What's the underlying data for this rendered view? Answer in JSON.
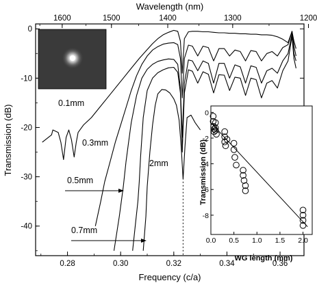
{
  "chart_data": [
    {
      "type": "line",
      "xlabel": "Frequency (c/a)",
      "ylabel": "Transmission (dB)",
      "top_xlabel": "Wavelength (nm)",
      "xlim": [
        0.268,
        0.369
      ],
      "ylim": [
        -46,
        1
      ],
      "x_ticks": [
        0.28,
        0.3,
        0.32,
        0.34,
        0.36
      ],
      "x_tick_labels": [
        "0.28",
        "0.30",
        "0.32",
        "0.34",
        "0.36"
      ],
      "y_ticks": [
        0,
        -10,
        -20,
        -30,
        -40
      ],
      "y_tick_labels": [
        "0",
        "-10",
        "-20",
        "-30",
        "-40"
      ],
      "top_ticks": [
        1600,
        1500,
        1400,
        1300,
        1200
      ],
      "top_tick_labels": [
        "1600",
        "1500",
        "1400",
        "1300",
        "1200"
      ],
      "dotted_marker_x": 0.3235,
      "series": [
        {
          "name": "0.1mm",
          "x": [
            0.2705,
            0.274,
            0.2745,
            0.2765,
            0.2775,
            0.2785,
            0.2795,
            0.2805,
            0.2815,
            0.2825,
            0.2833,
            0.284,
            0.286,
            0.289,
            0.292,
            0.295,
            0.298,
            0.301,
            0.304,
            0.307,
            0.31,
            0.312,
            0.314,
            0.316,
            0.318,
            0.32,
            0.3215,
            0.3225,
            0.3232,
            0.324,
            0.3255,
            0.327,
            0.329,
            0.331,
            0.333,
            0.335,
            0.337,
            0.339,
            0.341,
            0.343,
            0.345,
            0.347,
            0.349,
            0.351,
            0.353,
            0.355,
            0.357,
            0.359,
            0.361,
            0.363,
            0.3645,
            0.3652,
            0.366
          ],
          "y": [
            -23,
            -21.5,
            -20.5,
            -21,
            -23,
            -26.5,
            -22,
            -20.5,
            -22.5,
            -26,
            -23,
            -21,
            -19.5,
            -18,
            -16,
            -14,
            -12,
            -10,
            -8,
            -6,
            -4.2,
            -3,
            -2,
            -1.2,
            -0.7,
            -0.3,
            -0.5,
            -2.5,
            -9,
            -2,
            -0.6,
            -0.5,
            -0.5,
            -0.6,
            -0.6,
            -0.7,
            -0.8,
            -0.8,
            -0.9,
            -0.9,
            -1,
            -1,
            -1.1,
            -1.1,
            -1.2,
            -1.2,
            -1.3,
            -1.6,
            -2.1,
            -2.8,
            -0.5,
            -2.5,
            -4
          ]
        },
        {
          "name": "0.3mm",
          "x": [
            0.2905,
            0.2925,
            0.294,
            0.296,
            0.298,
            0.3,
            0.302,
            0.304,
            0.306,
            0.308,
            0.31,
            0.312,
            0.314,
            0.316,
            0.318,
            0.32,
            0.3215,
            0.3225,
            0.3232,
            0.324,
            0.3255,
            0.327,
            0.329,
            0.331,
            0.333,
            0.335,
            0.337,
            0.339,
            0.341,
            0.343,
            0.345,
            0.347,
            0.349,
            0.351,
            0.353,
            0.355,
            0.357,
            0.359,
            0.361,
            0.363,
            0.3645,
            0.3652,
            0.366
          ],
          "y": [
            -40,
            -35,
            -31,
            -27,
            -23,
            -19.5,
            -16,
            -12.5,
            -9.5,
            -7.2,
            -5.5,
            -4.3,
            -3.6,
            -3.1,
            -2.9,
            -2.8,
            -3.2,
            -6,
            -14,
            -6,
            -3.3,
            -3.5,
            -5.5,
            -3.5,
            -3.8,
            -6.5,
            -4,
            -4,
            -5.5,
            -4.3,
            -4.6,
            -6.5,
            -4.4,
            -4.6,
            -6.5,
            -5,
            -4.6,
            -5.5,
            -3.8,
            -3.2,
            -0.5,
            -3.5,
            -5.5
          ]
        },
        {
          "name": "0.5mm",
          "x": [
            0.2975,
            0.2995,
            0.301,
            0.302,
            0.303,
            0.304,
            0.306,
            0.308,
            0.31,
            0.312,
            0.314,
            0.316,
            0.318,
            0.32,
            0.3215,
            0.3225,
            0.3232,
            0.324,
            0.3255,
            0.327,
            0.329,
            0.331,
            0.333,
            0.335,
            0.337,
            0.339,
            0.341,
            0.343,
            0.345,
            0.347,
            0.349,
            0.351,
            0.353,
            0.355,
            0.357,
            0.359,
            0.361,
            0.363,
            0.3645,
            0.3652,
            0.366
          ],
          "y": [
            -45,
            -38,
            -32,
            -27,
            -23,
            -19,
            -13.5,
            -10,
            -8.2,
            -7.2,
            -6.6,
            -6.3,
            -6.1,
            -6.2,
            -7.2,
            -12,
            -22,
            -11,
            -6.3,
            -6.5,
            -8.5,
            -6.5,
            -7,
            -11,
            -7,
            -7,
            -10,
            -7.3,
            -7.7,
            -11,
            -7.5,
            -7.8,
            -11,
            -8.5,
            -8,
            -9,
            -6.5,
            -5,
            -1,
            -5,
            -6.5
          ]
        },
        {
          "name": "0.7mm",
          "x": [
            0.3045,
            0.3055,
            0.3065,
            0.307,
            0.3075,
            0.3085,
            0.31,
            0.312,
            0.314,
            0.316,
            0.318,
            0.32,
            0.3215,
            0.3225,
            0.3232,
            0.324,
            0.3255,
            0.327,
            0.329,
            0.331,
            0.333,
            0.335,
            0.337,
            0.339,
            0.341,
            0.343,
            0.345,
            0.347,
            0.349,
            0.351,
            0.353,
            0.355,
            0.357,
            0.359,
            0.361,
            0.363,
            0.3645,
            0.3652,
            0.366
          ],
          "y": [
            -45,
            -40,
            -35,
            -31,
            -26,
            -18,
            -12.5,
            -10,
            -8.9,
            -8.3,
            -7.9,
            -7.8,
            -8.8,
            -13,
            -25,
            -13,
            -8.3,
            -8.6,
            -11,
            -8.7,
            -9.2,
            -13,
            -9.3,
            -9.4,
            -12.5,
            -9.8,
            -10,
            -13.5,
            -10,
            -10.3,
            -14,
            -11,
            -10.5,
            -12,
            -8.5,
            -6.5,
            -1.5,
            -6,
            -8
          ]
        },
        {
          "name": "2mm",
          "x": [
            0.3085,
            0.3095,
            0.31,
            0.311,
            0.312,
            0.313,
            0.314,
            0.3155,
            0.317,
            0.3185,
            0.32,
            0.321,
            0.322,
            0.3228,
            0.3235,
            0.3242,
            0.325,
            0.3265,
            0.328,
            0.33
          ],
          "y": [
            -45,
            -38,
            -32,
            -25,
            -19.5,
            -15.5,
            -13.2,
            -12.3,
            -12.4,
            -13,
            -14.2,
            -15.5,
            -18.5,
            -24,
            -30.5,
            -24,
            -18,
            -17.5,
            -19,
            -20.5
          ]
        }
      ]
    },
    {
      "type": "scatter",
      "xlabel": "WG length (mm)",
      "ylabel": "Transmission (dB)",
      "xlim": [
        0,
        2.2
      ],
      "ylim": [
        -9.5,
        0.5
      ],
      "x_ticks": [
        0,
        0.5,
        1.0,
        1.5,
        2.0
      ],
      "x_tick_labels": [
        "0.0",
        "0.5",
        "1.0",
        "1.5",
        "2.0"
      ],
      "y_ticks": [
        0,
        -2,
        -4,
        -6,
        -8
      ],
      "y_tick_labels": [
        "0",
        "-2",
        "-4",
        "-6",
        "-8"
      ],
      "points": {
        "x": [
          0.05,
          0.05,
          0.06,
          0.07,
          0.07,
          0.1,
          0.1,
          0.1,
          0.12,
          0.3,
          0.3,
          0.3,
          0.32,
          0.35,
          0.5,
          0.5,
          0.52,
          0.55,
          0.7,
          0.7,
          0.72,
          0.75,
          0.75,
          2.0,
          2.0,
          2.0,
          2.0
        ],
        "y": [
          -0.3,
          -0.7,
          -1.1,
          -1.3,
          -1.5,
          -0.8,
          -1.2,
          -1.4,
          -1.7,
          -1.5,
          -1.9,
          -2.3,
          -2.6,
          -2.1,
          -2.4,
          -2.9,
          -3.5,
          -4.1,
          -4.5,
          -4.9,
          -5.3,
          -5.7,
          -6.1,
          -7.6,
          -8.0,
          -8.4,
          -8.8
        ]
      },
      "fit_line": {
        "x": [
          0,
          2.1
        ],
        "y": [
          -0.8,
          -8.9
        ]
      }
    }
  ],
  "inset_image": {
    "description_colors": [
      "#3a3a3a",
      "#ffffff"
    ]
  }
}
